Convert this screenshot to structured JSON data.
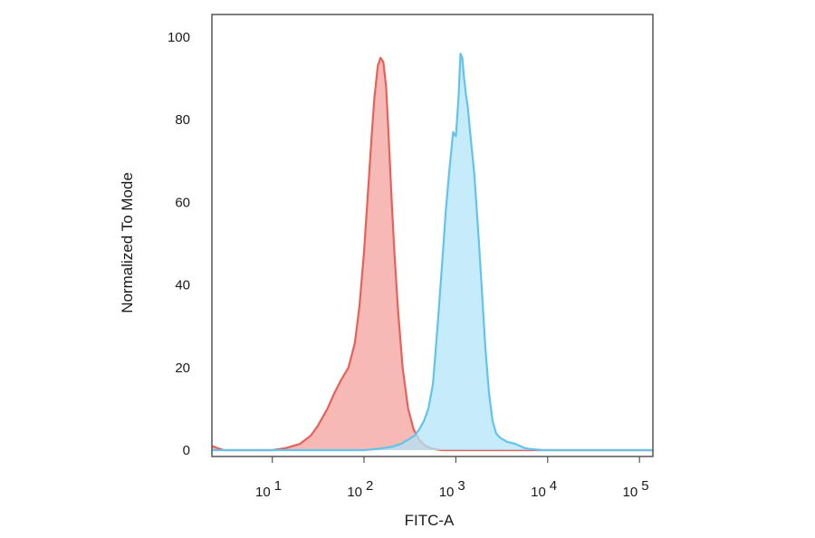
{
  "chart_data": {
    "type": "area",
    "title": "",
    "xlabel": "FITC-A",
    "ylabel": "Normalized To Mode",
    "xscale": "log",
    "xlim": [
      2.2,
      140000
    ],
    "ylim": [
      0,
      100
    ],
    "grid": false,
    "legend": "none",
    "yticks": [
      {
        "value": 0,
        "label": "0"
      },
      {
        "value": 20,
        "label": "20"
      },
      {
        "value": 40,
        "label": "40"
      },
      {
        "value": 60,
        "label": "60"
      },
      {
        "value": 80,
        "label": "80"
      },
      {
        "value": 100,
        "label": "100"
      }
    ],
    "xticks": [
      {
        "value": 10,
        "base": "10",
        "exp": "1"
      },
      {
        "value": 100,
        "base": "10",
        "exp": "2"
      },
      {
        "value": 1000,
        "base": "10",
        "exp": "3"
      },
      {
        "value": 10000,
        "base": "10",
        "exp": "4"
      },
      {
        "value": 100000,
        "base": "10",
        "exp": "5"
      }
    ],
    "series": [
      {
        "color": "#e8605a",
        "fill": "#f4a29c",
        "x": [
          2.2,
          2.6,
          3,
          10,
          14.1,
          19.9,
          26.3,
          31.6,
          39.8,
          47.9,
          56.2,
          67.6,
          79.4,
          89.1,
          100,
          110,
          120,
          129,
          141,
          151,
          162,
          174,
          186,
          200,
          214,
          234,
          263,
          302,
          347,
          398,
          457,
          525,
          603,
          700,
          1000,
          140000
        ],
        "y": [
          1,
          0.4,
          0,
          0,
          0.5,
          1.5,
          3.5,
          6,
          10,
          14,
          17,
          20,
          26,
          35,
          48,
          62,
          75,
          85,
          93,
          95,
          94,
          88,
          75,
          60,
          48,
          34,
          20,
          10,
          5,
          2.5,
          1.2,
          0.5,
          0.2,
          0,
          0,
          0
        ]
      },
      {
        "color": "#62c4ea",
        "fill": "#b3e4f8",
        "x": [
          2.2,
          100,
          141,
          200,
          251,
          302,
          355,
          398,
          447,
          501,
          562,
          631,
          708,
          776,
          851,
          933,
          1000,
          1023,
          1072,
          1122,
          1175,
          1230,
          1288,
          1349,
          1445,
          1585,
          1738,
          1905,
          2089,
          2291,
          2512,
          2754,
          3020,
          3311,
          3631,
          3981,
          4467,
          5012,
          5623,
          6310,
          7079,
          8913,
          10000,
          140000
        ],
        "y": [
          0,
          0,
          0.3,
          0.8,
          1.5,
          2.5,
          3.5,
          5,
          7,
          10,
          16,
          30,
          45,
          58,
          68,
          77,
          76,
          79,
          86,
          96,
          95,
          90,
          86,
          83,
          76,
          67,
          54,
          40,
          25,
          14,
          7,
          4,
          3,
          2.5,
          2,
          1.8,
          1.5,
          1,
          0.5,
          0.3,
          0.2,
          0,
          0,
          0
        ]
      }
    ]
  }
}
